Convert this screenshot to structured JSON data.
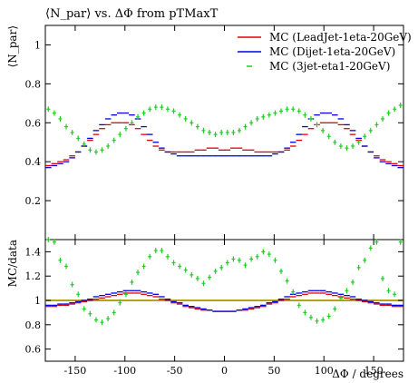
{
  "chart_data": {
    "type": "line",
    "title": "⟨N_par⟩ vs. ΔΦ from pTMaxT",
    "xlabel": "ΔΦ / degrees",
    "ylabel_main": "⟨N_par⟩",
    "ylabel_ratio": "MC/data",
    "xlim": [
      -180,
      180
    ],
    "ylim_main": [
      0,
      1.1
    ],
    "ylim_ratio": [
      0.5,
      1.5
    ],
    "x_ticks": [
      -150,
      -100,
      -50,
      0,
      50,
      100,
      150
    ],
    "y_ticks_main": [
      0.2,
      0.4,
      0.6,
      0.8,
      1
    ],
    "y_ticks_ratio": [
      0.6,
      0.8,
      1,
      1.2,
      1.4
    ],
    "ratio_reference": 1.0,
    "legend_position": "top-right",
    "x": [
      -177,
      -171,
      -165,
      -159,
      -153,
      -147,
      -141,
      -135,
      -129,
      -123,
      -117,
      -111,
      -105,
      -99,
      -93,
      -87,
      -81,
      -75,
      -69,
      -63,
      -57,
      -51,
      -45,
      -39,
      -33,
      -27,
      -21,
      -15,
      -9,
      -3,
      3,
      9,
      15,
      21,
      27,
      33,
      39,
      45,
      51,
      57,
      63,
      69,
      75,
      81,
      87,
      93,
      99,
      105,
      111,
      117,
      123,
      129,
      135,
      141,
      147,
      153,
      159,
      165,
      171,
      177
    ],
    "series": [
      {
        "name": "MC (LeadJet-1eta-20GeV)",
        "color": "#e00000",
        "style": "line",
        "values": [
          0.38,
          0.39,
          0.4,
          0.41,
          0.43,
          0.45,
          0.48,
          0.51,
          0.54,
          0.57,
          0.59,
          0.6,
          0.6,
          0.6,
          0.59,
          0.57,
          0.54,
          0.51,
          0.48,
          0.46,
          0.45,
          0.45,
          0.45,
          0.45,
          0.45,
          0.46,
          0.46,
          0.47,
          0.47,
          0.46,
          0.46,
          0.47,
          0.47,
          0.46,
          0.46,
          0.45,
          0.45,
          0.45,
          0.45,
          0.45,
          0.46,
          0.48,
          0.51,
          0.54,
          0.57,
          0.59,
          0.6,
          0.6,
          0.6,
          0.59,
          0.57,
          0.54,
          0.51,
          0.48,
          0.45,
          0.43,
          0.41,
          0.4,
          0.39,
          0.38
        ]
      },
      {
        "name": "MC (Dijet-1eta-20GeV)",
        "color": "#0000e0",
        "style": "line",
        "values": [
          0.37,
          0.38,
          0.39,
          0.4,
          0.42,
          0.45,
          0.48,
          0.52,
          0.56,
          0.59,
          0.62,
          0.64,
          0.65,
          0.65,
          0.64,
          0.62,
          0.58,
          0.54,
          0.5,
          0.47,
          0.45,
          0.44,
          0.43,
          0.43,
          0.43,
          0.43,
          0.43,
          0.43,
          0.43,
          0.43,
          0.43,
          0.43,
          0.43,
          0.43,
          0.43,
          0.43,
          0.43,
          0.43,
          0.44,
          0.45,
          0.47,
          0.5,
          0.54,
          0.58,
          0.62,
          0.64,
          0.65,
          0.65,
          0.64,
          0.62,
          0.59,
          0.56,
          0.52,
          0.48,
          0.45,
          0.42,
          0.4,
          0.39,
          0.38,
          0.37
        ]
      },
      {
        "name": "MC (3jet-eta1-20GeV)",
        "color": "#20cc20",
        "style": "markers",
        "values": [
          0.67,
          0.65,
          0.62,
          0.58,
          0.55,
          0.52,
          0.49,
          0.46,
          0.45,
          0.46,
          0.48,
          0.51,
          0.54,
          0.57,
          0.6,
          0.63,
          0.65,
          0.67,
          0.68,
          0.68,
          0.67,
          0.66,
          0.64,
          0.62,
          0.6,
          0.58,
          0.56,
          0.55,
          0.54,
          0.55,
          0.55,
          0.55,
          0.56,
          0.58,
          0.6,
          0.62,
          0.63,
          0.64,
          0.65,
          0.66,
          0.67,
          0.67,
          0.66,
          0.64,
          0.62,
          0.59,
          0.56,
          0.53,
          0.5,
          0.48,
          0.47,
          0.48,
          0.5,
          0.53,
          0.56,
          0.59,
          0.62,
          0.65,
          0.67,
          0.69
        ]
      }
    ],
    "ratio_series": [
      {
        "name": "MC (LeadJet-1eta-20GeV)",
        "color": "#e00000",
        "style": "line",
        "values": [
          0.95,
          0.95,
          0.96,
          0.96,
          0.97,
          0.98,
          0.99,
          1.0,
          1.01,
          1.02,
          1.03,
          1.04,
          1.05,
          1.06,
          1.06,
          1.06,
          1.05,
          1.04,
          1.03,
          1.01,
          1.0,
          0.98,
          0.97,
          0.95,
          0.94,
          0.93,
          0.92,
          0.92,
          0.91,
          0.91,
          0.91,
          0.91,
          0.92,
          0.92,
          0.93,
          0.94,
          0.95,
          0.97,
          0.98,
          1.0,
          1.01,
          1.03,
          1.04,
          1.05,
          1.06,
          1.06,
          1.06,
          1.05,
          1.04,
          1.03,
          1.02,
          1.01,
          1.0,
          0.99,
          0.98,
          0.97,
          0.96,
          0.96,
          0.95,
          0.95
        ]
      },
      {
        "name": "MC (Dijet-1eta-20GeV)",
        "color": "#0000e0",
        "style": "line",
        "values": [
          0.96,
          0.96,
          0.97,
          0.97,
          0.98,
          0.99,
          1.0,
          1.01,
          1.03,
          1.04,
          1.05,
          1.06,
          1.07,
          1.08,
          1.08,
          1.08,
          1.07,
          1.06,
          1.05,
          1.03,
          1.01,
          0.99,
          0.98,
          0.96,
          0.95,
          0.94,
          0.93,
          0.92,
          0.91,
          0.91,
          0.91,
          0.91,
          0.92,
          0.93,
          0.94,
          0.95,
          0.96,
          0.98,
          0.99,
          1.01,
          1.03,
          1.05,
          1.06,
          1.07,
          1.08,
          1.08,
          1.08,
          1.07,
          1.06,
          1.05,
          1.04,
          1.03,
          1.01,
          1.0,
          0.99,
          0.98,
          0.97,
          0.97,
          0.96,
          0.96
        ]
      },
      {
        "name": "MC (3jet-eta1-20GeV)",
        "color": "#20cc20",
        "style": "markers",
        "values": [
          1.5,
          1.48,
          1.33,
          1.28,
          1.13,
          1.05,
          0.93,
          0.89,
          0.84,
          0.82,
          0.85,
          0.9,
          0.98,
          1.05,
          1.15,
          1.23,
          1.28,
          1.36,
          1.41,
          1.41,
          1.36,
          1.31,
          1.28,
          1.25,
          1.21,
          1.18,
          1.14,
          1.19,
          1.24,
          1.27,
          1.31,
          1.34,
          1.33,
          1.29,
          1.34,
          1.36,
          1.4,
          1.38,
          1.33,
          1.24,
          1.16,
          1.07,
          0.96,
          0.9,
          0.86,
          0.83,
          0.84,
          0.87,
          0.93,
          1.02,
          1.08,
          1.15,
          1.27,
          1.33,
          1.43,
          1.48,
          1.18,
          1.08,
          1.05,
          1.48
        ]
      }
    ]
  }
}
